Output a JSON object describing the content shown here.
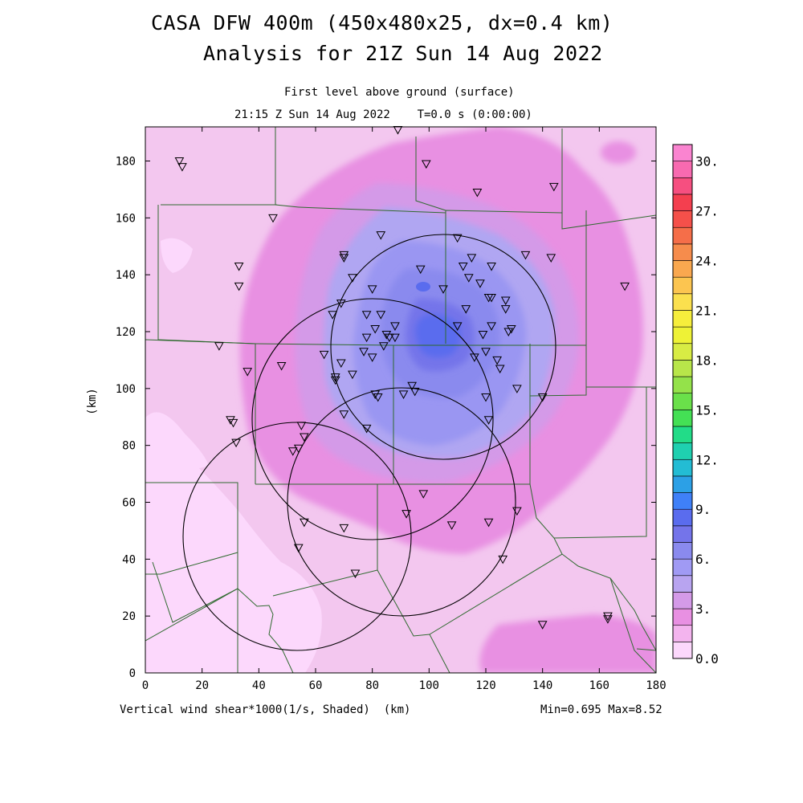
{
  "title": {
    "line1": "CASA DFW 400m (450x480x25, dx=0.4 km)",
    "line2": "Analysis for 21Z Sun 14 Aug 2022"
  },
  "subtitle": {
    "level": "First level above ground (surface)",
    "time": "21:15 Z Sun 14 Aug 2022    T=0.0 s (0:00:00)"
  },
  "footer": {
    "variable": "Vertical wind shear*1000(1/s, Shaded)  (km)",
    "minmax": "Min=0.695 Max=8.52"
  },
  "axes": {
    "x_ticks": [
      "0",
      "20",
      "40",
      "60",
      "80",
      "100",
      "120",
      "140",
      "160",
      "180"
    ],
    "y_ticks": [
      "0",
      "20",
      "40",
      "60",
      "80",
      "100",
      "120",
      "140",
      "160",
      "180"
    ],
    "y_label": "(km)",
    "x_range": [
      0,
      180
    ],
    "y_range": [
      0,
      192
    ]
  },
  "colorbar": {
    "labels": [
      "30.",
      "27.",
      "24.",
      "21.",
      "18.",
      "15.",
      "12.",
      "9.",
      "6.",
      "3.",
      "0.0"
    ],
    "colors": [
      "#fcd8fc",
      "#f3b4ee",
      "#e890e2",
      "#d49ae8",
      "#b8a4f0",
      "#a09af4",
      "#8a8aee",
      "#7474ea",
      "#5a6cee",
      "#3f80f8",
      "#2ca0e6",
      "#23bcd4",
      "#1fd0b0",
      "#22dc88",
      "#44e055",
      "#6ae04a",
      "#94e24a",
      "#b8e64a",
      "#d8ec44",
      "#eef236",
      "#f6ee3c",
      "#fbe04e",
      "#fcc550",
      "#faa84f",
      "#f68c4c",
      "#f56e49",
      "#f5504a",
      "#f43f4f",
      "#f64f80",
      "#f86ab0",
      "#fa84d0"
    ]
  },
  "map": {
    "background_color": "#f3c7ef",
    "features": [
      "radar-range-rings",
      "county-boundaries",
      "observation-stations"
    ]
  },
  "chart_data": {
    "type": "heatmap",
    "field": "Vertical wind shear*1000",
    "units": "1/s",
    "min": 0.695,
    "max": 8.52,
    "xlim": [
      0,
      180
    ],
    "ylim": [
      0,
      192
    ],
    "color_scale_range": [
      0,
      30
    ],
    "color_scale_step": 1,
    "radar_rings": [
      {
        "center": [
          103,
          116
        ],
        "radius_km": 39
      },
      {
        "center": [
          79,
          91
        ],
        "radius_km": 44
      },
      {
        "center": [
          90,
          61
        ],
        "radius_km": 40
      },
      {
        "center": [
          47,
          52
        ],
        "radius_km": 44
      }
    ],
    "stations": [
      [
        12,
        180
      ],
      [
        13,
        178
      ],
      [
        89,
        191
      ],
      [
        99,
        179
      ],
      [
        117,
        169
      ],
      [
        144,
        171
      ],
      [
        45,
        160
      ],
      [
        33,
        143
      ],
      [
        33,
        136
      ],
      [
        26,
        115
      ],
      [
        36,
        106
      ],
      [
        48,
        108
      ],
      [
        30,
        89
      ],
      [
        31,
        88
      ],
      [
        32,
        81
      ],
      [
        55,
        87
      ],
      [
        56,
        83
      ],
      [
        54,
        79
      ],
      [
        52,
        78
      ],
      [
        70,
        147
      ],
      [
        70,
        146
      ],
      [
        73,
        139
      ],
      [
        69,
        130
      ],
      [
        66,
        126
      ],
      [
        78,
        126
      ],
      [
        83,
        126
      ],
      [
        83,
        154
      ],
      [
        80,
        135
      ],
      [
        97,
        142
      ],
      [
        110,
        153
      ],
      [
        105,
        135
      ],
      [
        112,
        143
      ],
      [
        115,
        146
      ],
      [
        122,
        143
      ],
      [
        114,
        139
      ],
      [
        118,
        137
      ],
      [
        121,
        132
      ],
      [
        122,
        132
      ],
      [
        127,
        131
      ],
      [
        127,
        128
      ],
      [
        134,
        147
      ],
      [
        143,
        146
      ],
      [
        169,
        136
      ],
      [
        113,
        128
      ],
      [
        110,
        122
      ],
      [
        119,
        119
      ],
      [
        122,
        122
      ],
      [
        128,
        120
      ],
      [
        129,
        121
      ],
      [
        124,
        110
      ],
      [
        125,
        107
      ],
      [
        120,
        113
      ],
      [
        116,
        111
      ],
      [
        120,
        97
      ],
      [
        131,
        100
      ],
      [
        140,
        97
      ],
      [
        121,
        89
      ],
      [
        88,
        122
      ],
      [
        85,
        119
      ],
      [
        86,
        118
      ],
      [
        88,
        118
      ],
      [
        81,
        121
      ],
      [
        78,
        118
      ],
      [
        84,
        115
      ],
      [
        80,
        111
      ],
      [
        77,
        113
      ],
      [
        73,
        105
      ],
      [
        69,
        109
      ],
      [
        63,
        112
      ],
      [
        67,
        104
      ],
      [
        67,
        103
      ],
      [
        70,
        91
      ],
      [
        81,
        98
      ],
      [
        82,
        97
      ],
      [
        94,
        101
      ],
      [
        95,
        99
      ],
      [
        91,
        98
      ],
      [
        78,
        86
      ],
      [
        98,
        63
      ],
      [
        92,
        56
      ],
      [
        108,
        52
      ],
      [
        121,
        53
      ],
      [
        131,
        57
      ],
      [
        126,
        40
      ],
      [
        56,
        53
      ],
      [
        70,
        51
      ],
      [
        54,
        44
      ],
      [
        74,
        35
      ],
      [
        140,
        17
      ],
      [
        163,
        20
      ],
      [
        163,
        19
      ]
    ]
  }
}
